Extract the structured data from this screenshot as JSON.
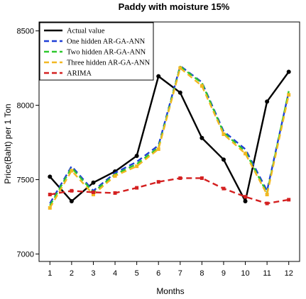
{
  "chart_data": {
    "type": "line",
    "title": "Paddy with moisture 15%",
    "xlabel": "Months",
    "ylabel": "Price(Baht) per 1 Ton",
    "x": [
      1,
      2,
      3,
      4,
      5,
      6,
      7,
      8,
      9,
      10,
      11,
      12
    ],
    "xlim": [
      0.5,
      12.5
    ],
    "ylim": [
      6950,
      8560
    ],
    "yticks": [
      7000,
      7500,
      8000,
      8500
    ],
    "grid": false,
    "legend_position": "top-left",
    "series": [
      {
        "name": "Actual value",
        "color": "#000000",
        "style": "solid",
        "markers": true,
        "values": [
          7520,
          7355,
          7480,
          7555,
          7660,
          8195,
          8085,
          7780,
          7635,
          7355,
          8025,
          8225
        ]
      },
      {
        "name": "One hidden AR-GA-ANN",
        "color": "#1f3fd6",
        "style": "dashed",
        "markers": false,
        "values": [
          7340,
          7590,
          7425,
          7545,
          7620,
          7730,
          8265,
          8155,
          7825,
          7705,
          7425,
          8090
        ]
      },
      {
        "name": "Two hidden AR-GA-ANN",
        "color": "#2ec82e",
        "style": "dashed",
        "markers": false,
        "values": [
          7325,
          7580,
          7415,
          7535,
          7605,
          7715,
          8260,
          8150,
          7815,
          7690,
          7410,
          8095
        ]
      },
      {
        "name": "Three hidden AR-GA-ANN",
        "color": "#f2b822",
        "style": "dashed",
        "markers": true,
        "values": [
          7310,
          7560,
          7400,
          7525,
          7590,
          7705,
          8250,
          8130,
          7805,
          7675,
          7400,
          8070
        ]
      },
      {
        "name": "ARIMA",
        "color": "#d42020",
        "style": "dashed",
        "markers": true,
        "values": [
          7400,
          7425,
          7415,
          7410,
          7445,
          7485,
          7510,
          7510,
          7440,
          7385,
          7340,
          7365
        ]
      }
    ]
  }
}
